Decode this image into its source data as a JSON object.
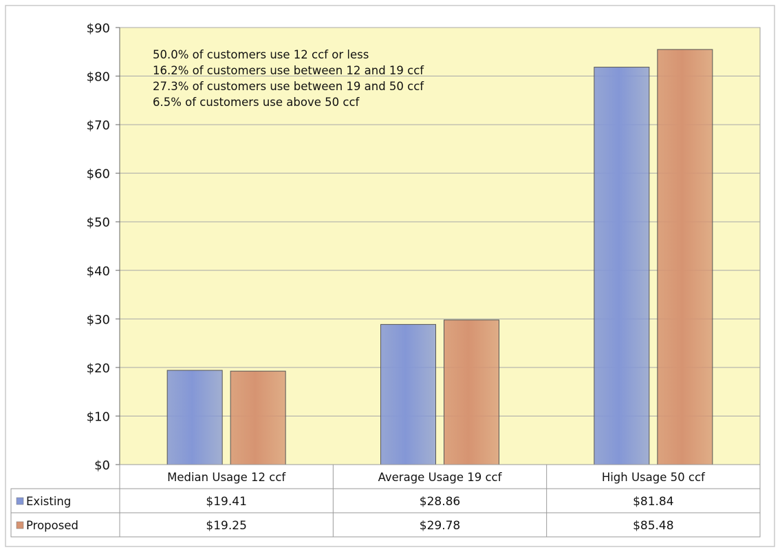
{
  "chart_data": {
    "type": "bar",
    "categories": [
      "Median Usage 12 ccf",
      "Average Usage 19 ccf",
      "High Usage 50 ccf"
    ],
    "series": [
      {
        "name": "Existing",
        "values": [
          19.41,
          28.86,
          81.84
        ],
        "labels": [
          "$19.41",
          "$28.86",
          "$81.84"
        ],
        "color": "#8497d6"
      },
      {
        "name": "Proposed",
        "values": [
          19.25,
          29.78,
          85.48
        ],
        "labels": [
          "$19.25",
          "$29.78",
          "$85.48"
        ],
        "color": "#d69472"
      }
    ],
    "ylim": [
      0,
      90
    ],
    "yticks": [
      {
        "value": 0,
        "label": "$0"
      },
      {
        "value": 10,
        "label": "$10"
      },
      {
        "value": 20,
        "label": "$20"
      },
      {
        "value": 30,
        "label": "$30"
      },
      {
        "value": 40,
        "label": "$40"
      },
      {
        "value": 50,
        "label": "$50"
      },
      {
        "value": 60,
        "label": "$60"
      },
      {
        "value": 70,
        "label": "$70"
      },
      {
        "value": 80,
        "label": "$80"
      },
      {
        "value": 90,
        "label": "$90"
      }
    ],
    "annotations": [
      "50.0% of customers use 12 ccf or less",
      "16.2% of customers use between 12 and 19 ccf",
      "27.3% of customers use between 19 and 50 ccf",
      "6.5% of customers use above 50 ccf"
    ],
    "grid": true,
    "data_table": true,
    "plot_background": "#fbf8c4"
  }
}
